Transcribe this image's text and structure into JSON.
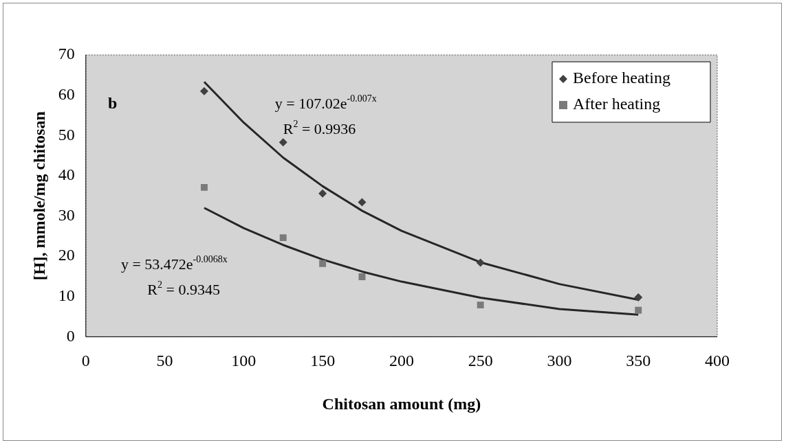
{
  "chart_data": {
    "type": "scatter",
    "xlabel": "Chitosan amount (mg)",
    "ylabel": "[H], mmole/mg chitosan",
    "xlim": [
      0,
      400
    ],
    "xticks": [
      0,
      50,
      100,
      150,
      200,
      250,
      300,
      350,
      400
    ],
    "ylim": [
      0,
      70
    ],
    "yticks": [
      0,
      10,
      20,
      30,
      40,
      50,
      60,
      70
    ],
    "legend": "top right",
    "grid": false,
    "series": [
      {
        "name": "Before heating",
        "color": "#404040",
        "marker": "diamond",
        "x": [
          75,
          125,
          150,
          175,
          250,
          350
        ],
        "values": [
          61,
          48.3,
          35.6,
          33.4,
          18.4,
          9.8
        ]
      },
      {
        "name": "After heating",
        "color": "#7a7a7a",
        "marker": "square",
        "x": [
          75,
          125,
          150,
          175,
          250,
          350
        ],
        "values": [
          37.1,
          24.6,
          18.2,
          14.9,
          7.9,
          6.6
        ]
      },
      {
        "type": "line",
        "color": "#262626",
        "marker": "none",
        "x": [
          75,
          100,
          125,
          150,
          175,
          200,
          250,
          300,
          350
        ],
        "values": [
          63.3,
          53.2,
          44.5,
          37.4,
          31.3,
          26.3,
          18.5,
          13.1,
          9.2
        ]
      },
      {
        "type": "line",
        "color": "#262626",
        "marker": "none",
        "x": [
          75,
          100,
          125,
          150,
          175,
          200,
          250,
          300,
          350
        ],
        "values": [
          32.0,
          27.0,
          22.8,
          19.2,
          16.2,
          13.7,
          9.7,
          6.9,
          5.5
        ]
      }
    ],
    "annotations": [
      "b",
      "y = 107.02e$^{-0.007x}$",
      "R$^{2}$ = 0.9936",
      "y = 53.472e$^{-0.0068x}$",
      "R$^{2}$ = 0.9345"
    ]
  }
}
